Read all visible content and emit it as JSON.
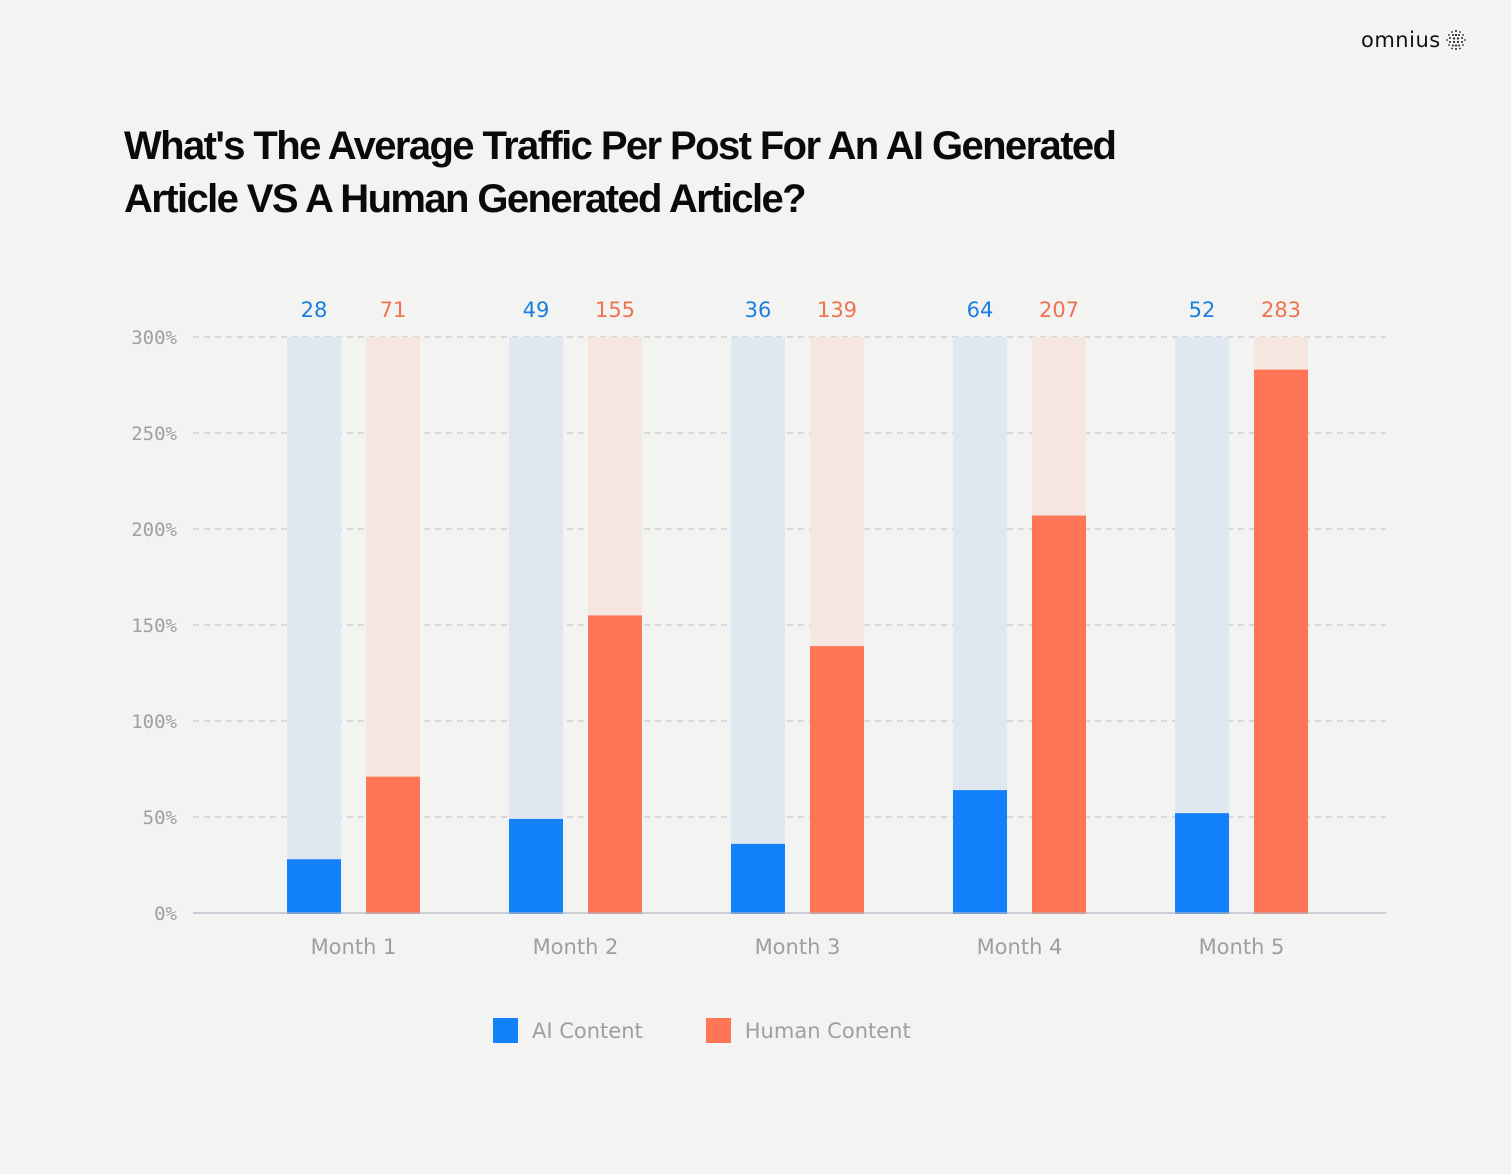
{
  "brand": {
    "name": "omnius",
    "icon": "dotted-sphere-icon"
  },
  "colors": {
    "ai": "#1380fc",
    "ai_track": "#dfe7f0",
    "human": "#ff7657",
    "human_track": "#f5e6e0",
    "ai_label": "#1a7fe0",
    "human_label": "#ef7351",
    "axis_text": "#9b9fa6",
    "grid": "#b9bcc2"
  },
  "chart_data": {
    "type": "bar",
    "title": "What's The Average Traffic Per Post For An AI Generated Article VS A Human Generated Article?",
    "title_lines": [
      "What's The Average Traffic Per Post For An AI Generated",
      "Article VS A Human Generated Article?"
    ],
    "categories": [
      "Month 1",
      "Month 2",
      "Month 3",
      "Month 4",
      "Month 5"
    ],
    "series": [
      {
        "name": "AI Content",
        "values": [
          28,
          49,
          36,
          64,
          52
        ]
      },
      {
        "name": "Human Content",
        "values": [
          71,
          155,
          139,
          207,
          283
        ]
      }
    ],
    "data_labels": {
      "AI Content": [
        "28",
        "49",
        "36",
        "64",
        "52"
      ],
      "Human Content": [
        "71",
        "155",
        "139",
        "207",
        "283"
      ]
    },
    "xlabel": "",
    "ylabel": "",
    "ylim": [
      0,
      300
    ],
    "yticks": [
      0,
      50,
      100,
      150,
      200,
      250,
      300
    ],
    "ytick_labels": [
      "0%",
      "50%",
      "100%",
      "150%",
      "200%",
      "250%",
      "300%"
    ],
    "grid": true,
    "background_track": true,
    "legend": {
      "position": "bottom-center",
      "entries": [
        "AI Content",
        "Human Content"
      ]
    }
  }
}
